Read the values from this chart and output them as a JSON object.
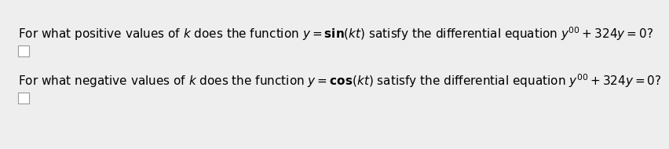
{
  "bg_color": "#eeeeee",
  "text_color": "#000000",
  "box_color": "#ffffff",
  "box_edge_color": "#999999",
  "fontsize": 11.0,
  "line1_normal": "For what positive values of ",
  "line1_bold_k": "k",
  "line1_mid": " does the function ",
  "line1_math1": "$y = \\mathbf{sin}(\\mathit{kt})$",
  "line1_mid2": " satisfy the differential equation ",
  "line1_math2": "$y'' + 324y = 0$",
  "line1_end": "?",
  "line2_normal": "For what negative values of ",
  "line2_bold_k": "k",
  "line2_mid": " does the function ",
  "line2_math1": "$y = \\mathbf{cos}(\\mathit{kt})$",
  "line2_mid2": " satisfy the differential equation ",
  "line2_math2": "$y'' + 324y = 0$",
  "line2_end": "?"
}
